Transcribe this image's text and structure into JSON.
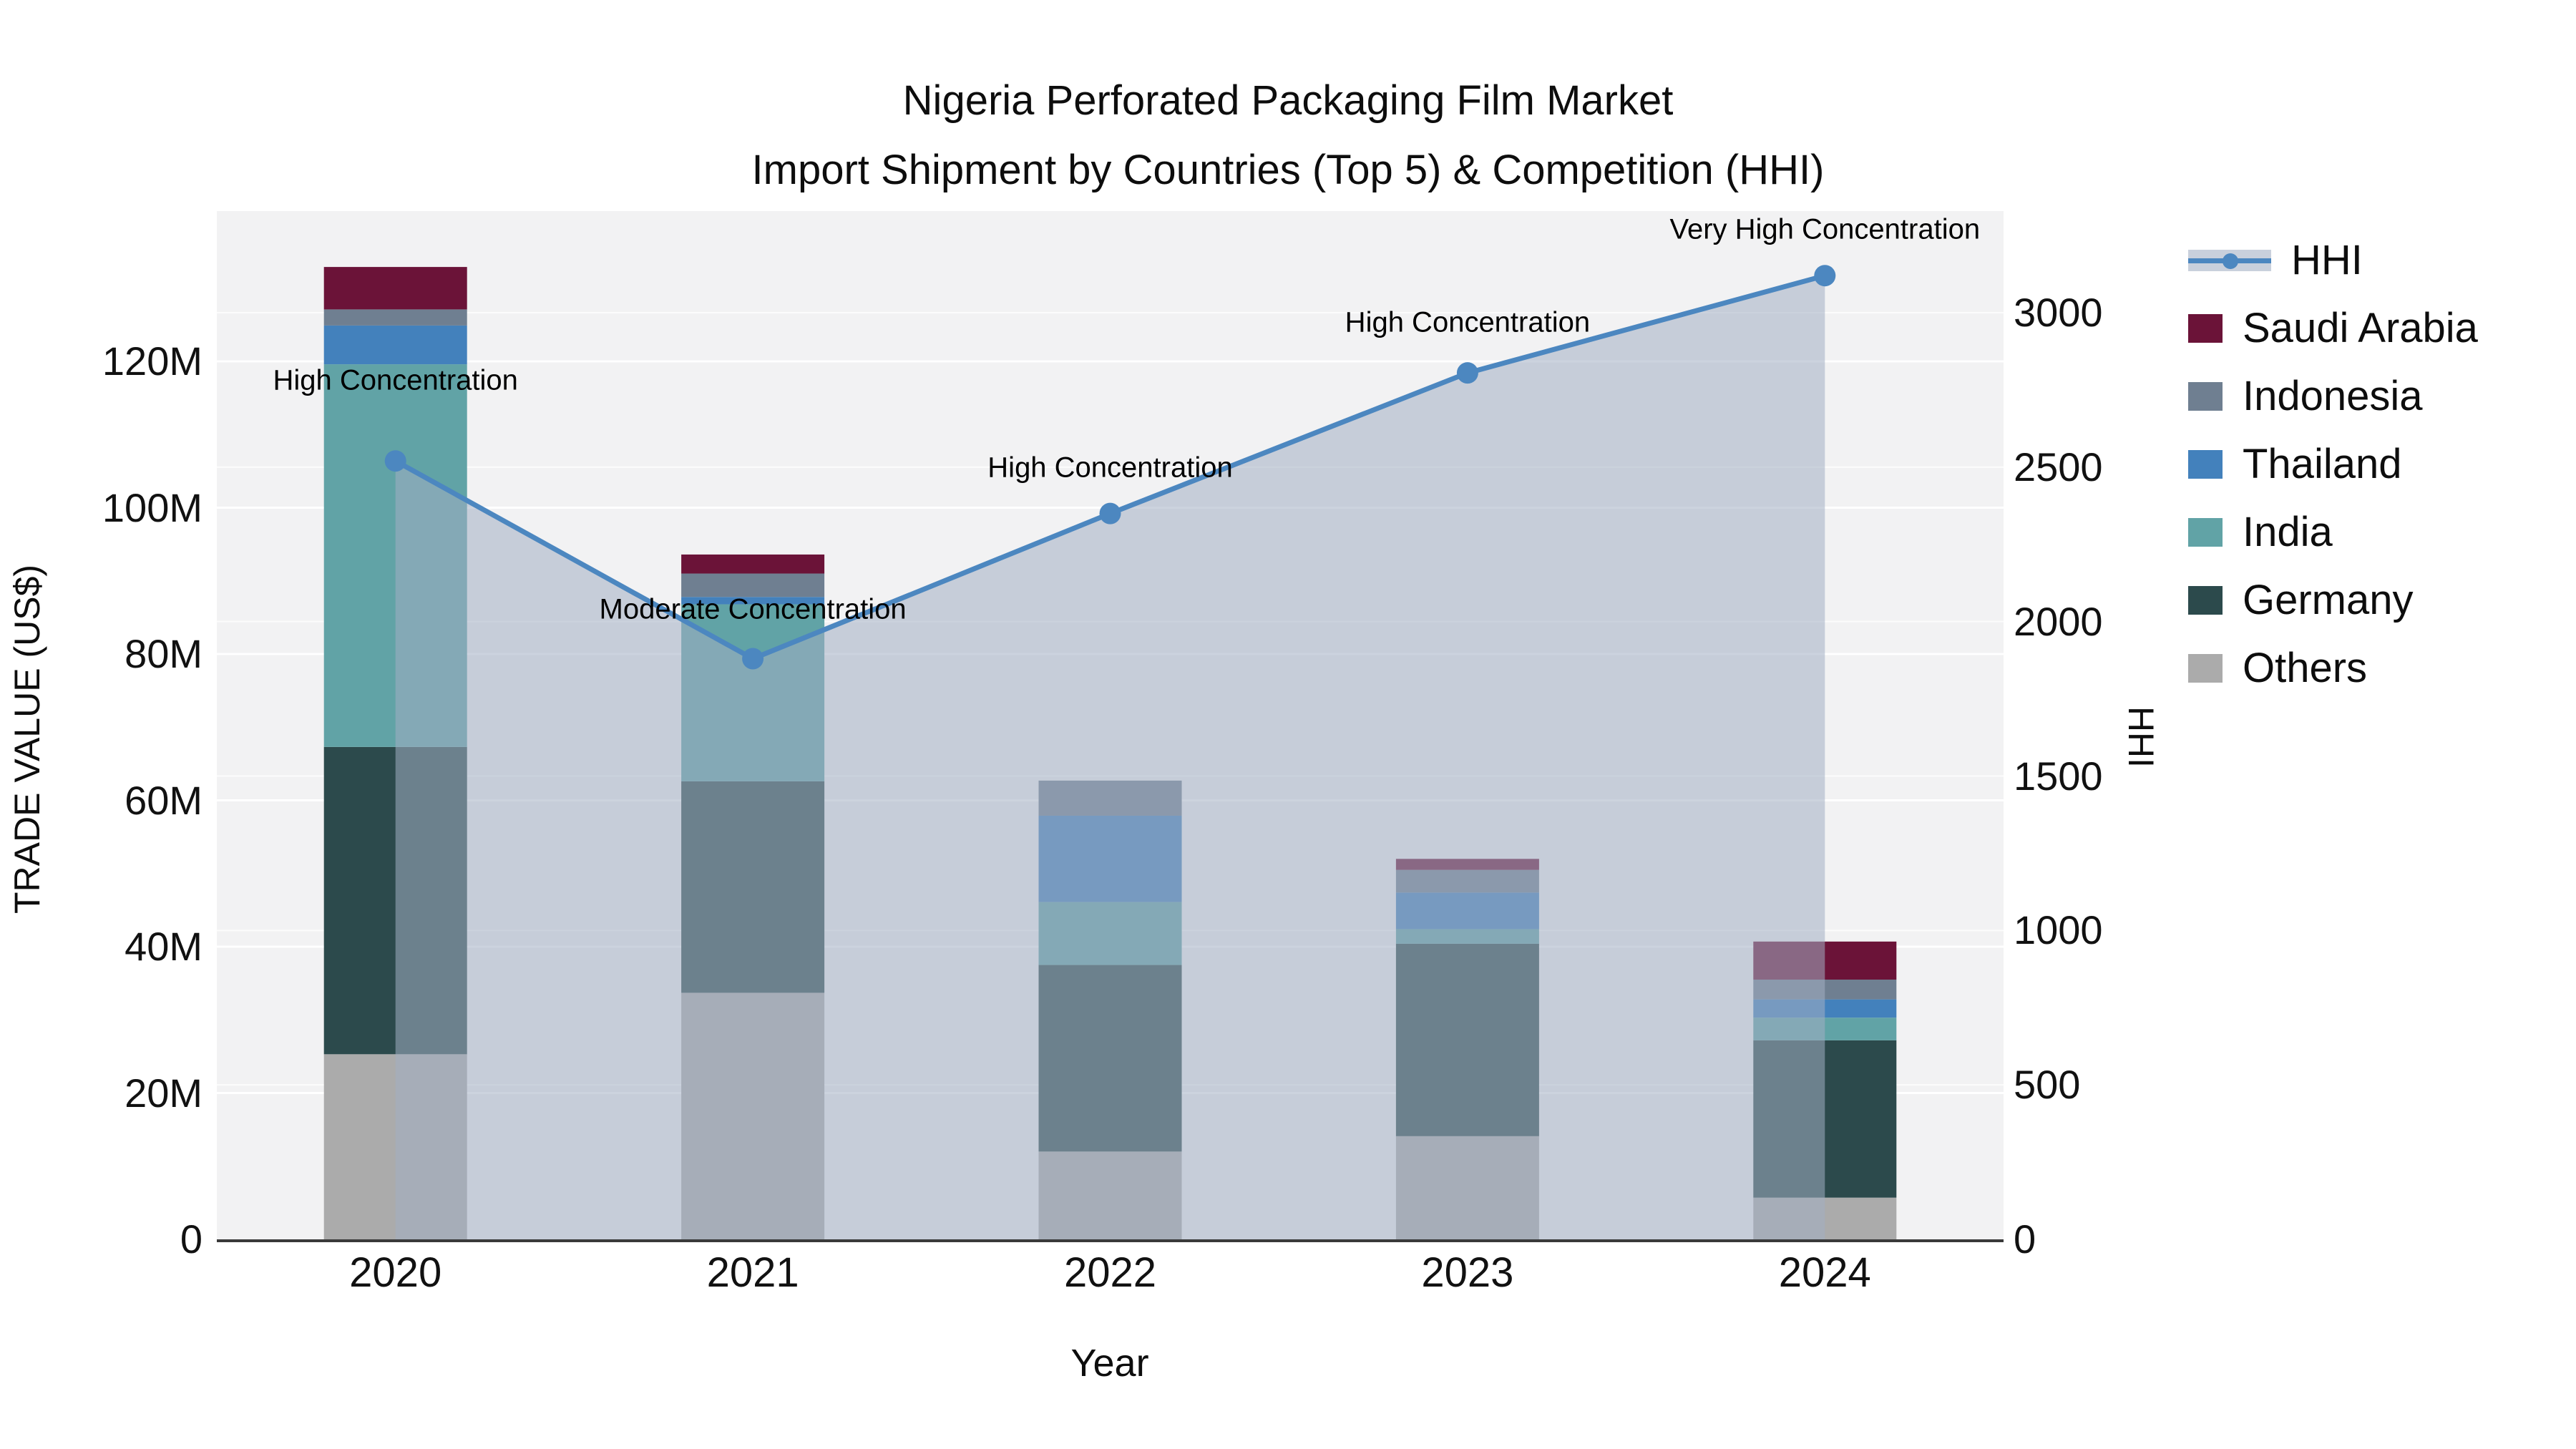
{
  "title": {
    "line1": "Nigeria Perforated Packaging Film Market",
    "line2": "Import Shipment by Countries (Top 5) & Competition (HHI)"
  },
  "axes": {
    "x": {
      "label": "Year",
      "ticks": [
        "2020",
        "2021",
        "2022",
        "2023",
        "2024"
      ]
    },
    "y_left": {
      "label": "TRADE VALUE (US$)",
      "ticks": [
        "0",
        "20M",
        "40M",
        "60M",
        "80M",
        "100M",
        "120M"
      ],
      "tick_values": [
        0,
        20,
        40,
        60,
        80,
        100,
        120
      ],
      "range": [
        0,
        140.5
      ]
    },
    "y_right": {
      "label": "HHI",
      "ticks": [
        "0",
        "500",
        "1000",
        "1500",
        "2000",
        "2500",
        "3000"
      ],
      "tick_values": [
        0,
        500,
        1000,
        1500,
        2000,
        2500,
        3000
      ],
      "range": [
        0,
        3330
      ]
    }
  },
  "legend": [
    {
      "label": "HHI",
      "symbol": "line-area",
      "color": "#4C87C0"
    },
    {
      "label": "Saudi Arabia",
      "symbol": "square",
      "color": "#6B1338"
    },
    {
      "label": "Indonesia",
      "symbol": "square",
      "color": "#6F7F91"
    },
    {
      "label": "Thailand",
      "symbol": "square",
      "color": "#4381BC"
    },
    {
      "label": "India",
      "symbol": "square",
      "color": "#61A3A6"
    },
    {
      "label": "Germany",
      "symbol": "square",
      "color": "#2C4A4C"
    },
    {
      "label": "Others",
      "symbol": "square",
      "color": "#ABABAB"
    }
  ],
  "chart_data": {
    "type": [
      "bar",
      "line"
    ],
    "categories": [
      "2020",
      "2021",
      "2022",
      "2023",
      "2024"
    ],
    "bar_unit": "Million US$",
    "stack_order_bottom_to_top": [
      "Others",
      "Germany",
      "India",
      "Thailand",
      "Indonesia",
      "Saudi Arabia"
    ],
    "series": [
      {
        "name": "Others",
        "color": "#ABABAB",
        "values": [
          25.3,
          33.7,
          12.0,
          14.1,
          5.7
        ]
      },
      {
        "name": "Germany",
        "color": "#2C4A4C",
        "values": [
          42.0,
          28.9,
          25.5,
          26.3,
          21.5
        ]
      },
      {
        "name": "India",
        "color": "#61A3A6",
        "values": [
          52.3,
          24.2,
          8.6,
          2.0,
          3.1
        ]
      },
      {
        "name": "Thailand",
        "color": "#4381BC",
        "values": [
          5.3,
          1.0,
          11.8,
          5.0,
          2.5
        ]
      },
      {
        "name": "Indonesia",
        "color": "#6F7F91",
        "values": [
          2.2,
          3.2,
          4.8,
          3.1,
          2.7
        ]
      },
      {
        "name": "Saudi Arabia",
        "color": "#6B1338",
        "values": [
          5.8,
          2.6,
          0.0,
          1.5,
          5.2
        ]
      }
    ],
    "bar_totals": [
      132.9,
      93.6,
      62.7,
      52.0,
      40.7
    ],
    "hhi_series": {
      "name": "HHI",
      "values": [
        2520,
        1880,
        2350,
        2805,
        3120
      ],
      "line_color": "#4C87C0",
      "area_fill": "rgba(163,174,194,0.55)"
    },
    "annotations": [
      {
        "year": "2020",
        "text": "High Concentration"
      },
      {
        "year": "2021",
        "text": "Moderate Concentration"
      },
      {
        "year": "2022",
        "text": "High Concentration"
      },
      {
        "year": "2023",
        "text": "High Concentration"
      },
      {
        "year": "2024",
        "text": "Very High Concentration"
      }
    ],
    "legend_position": "right",
    "grid": true
  },
  "colors": {
    "plot_background": "#F2F2F3",
    "paper_background": "#FFFFFF",
    "gridline": "#FFFFFF",
    "axis_line": "#3A3A3A",
    "text": "#111111"
  }
}
